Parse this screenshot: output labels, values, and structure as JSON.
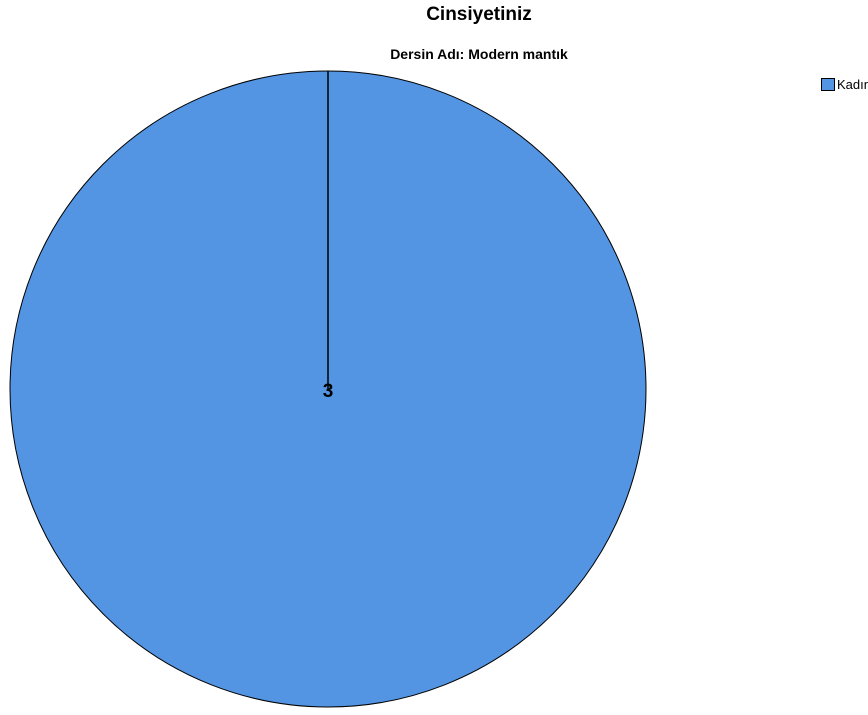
{
  "chart_data": {
    "type": "pie",
    "title": "Cinsiyetiniz",
    "subtitle": "Dersin Adı: Modern mantık",
    "legend_position": "top-right",
    "slices": [
      {
        "label": "Kadın",
        "value": 3,
        "color": "#5394e3"
      }
    ],
    "legend": [
      {
        "label": "Kadın",
        "color": "#5394e3"
      }
    ]
  }
}
